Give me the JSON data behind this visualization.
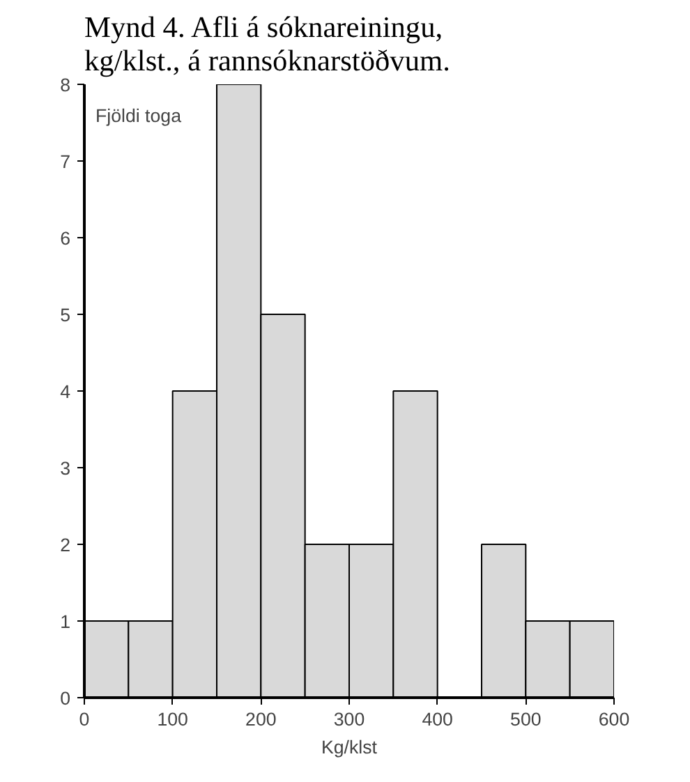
{
  "chart_data": {
    "type": "histogram",
    "title": "Mynd 4. Afli á sóknareiningu, kg/klst., á rannsóknarstöðvum.",
    "xlabel": "Kg/klst",
    "ylabel": "Fjöldi toga",
    "bins": [
      0,
      50,
      100,
      150,
      200,
      250,
      300,
      350,
      400,
      450,
      500,
      550,
      600
    ],
    "values": [
      1,
      1,
      4,
      8,
      5,
      2,
      2,
      4,
      0,
      2,
      1,
      1
    ],
    "color": "#d9d9d9",
    "xlim": [
      0,
      600
    ],
    "ylim": [
      0,
      8
    ],
    "xticks": [
      0,
      100,
      200,
      300,
      400,
      500,
      600
    ],
    "yticks": [
      0,
      1,
      2,
      3,
      4,
      5,
      6,
      7,
      8
    ],
    "grid": false
  }
}
